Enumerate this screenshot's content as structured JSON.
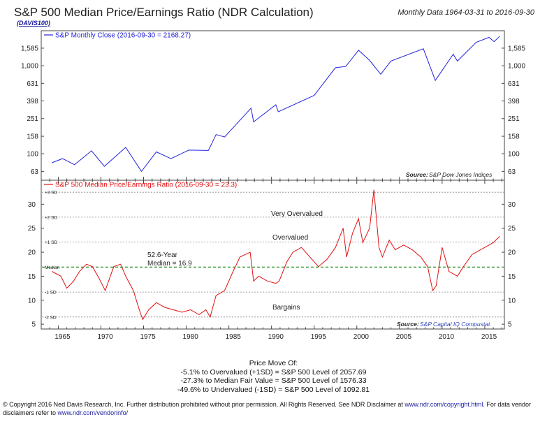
{
  "header": {
    "title": "S&P 500 Median Price/Earnings Ratio (NDR Calculation)",
    "code": "(DAVIS100)",
    "subtitle": "Monthly Data 1964-03-31 to 2016-09-30"
  },
  "colors": {
    "price": "#2222dd",
    "pe": "#e01010",
    "median": "#1a8a1a",
    "grid": "#888888",
    "source_blue": "#3344bb"
  },
  "chart_data": [
    {
      "type": "line",
      "title": "",
      "legend": "S&P Monthly Close (2016-09-30 = 2168.27)",
      "legend_position": "top-left",
      "yscale": "log",
      "yticks": [
        63,
        100,
        158,
        251,
        398,
        631,
        1000,
        1585
      ],
      "ytick_labels": [
        "63",
        "100",
        "158",
        "251",
        "398",
        "631",
        "1,000",
        "1,585"
      ],
      "ylim": [
        50,
        2500
      ],
      "source_label": "Source:",
      "source": "S&P Dow Jones Indices",
      "series": [
        {
          "name": "S&P Monthly Close (2016-09-30 = 2168.27)",
          "x": [
            1964.25,
            1965.5,
            1966.9,
            1968.9,
            1970.4,
            1972.9,
            1974.75,
            1976.5,
            1978.2,
            1980.3,
            1982.6,
            1983.5,
            1984.5,
            1987.6,
            1987.9,
            1990.5,
            1990.8,
            1995.0,
            1997.5,
            1998.7,
            2000.2,
            2001.5,
            2002.8,
            2004.0,
            2007.8,
            2009.2,
            2011.3,
            2011.8,
            2014.0,
            2015.5,
            2016.1,
            2016.75
          ],
          "y": [
            79,
            88,
            75,
            108,
            72,
            118,
            63,
            105,
            88,
            110,
            109,
            165,
            155,
            330,
            230,
            360,
            300,
            460,
            950,
            980,
            1500,
            1150,
            800,
            1130,
            1560,
            680,
            1350,
            1130,
            1850,
            2100,
            1880,
            2168
          ]
        }
      ]
    },
    {
      "type": "line",
      "title": "",
      "legend": "S&P 500 Median Price/Earnings Ratio (2016-09-30 = 23.3)",
      "legend_position": "top-left",
      "ylim": [
        5,
        35
      ],
      "yticks": [
        5,
        10,
        15,
        20,
        25,
        30
      ],
      "xticks": [
        1965,
        1970,
        1975,
        1980,
        1985,
        1990,
        1995,
        2000,
        2005,
        2010,
        2015
      ],
      "source_label": "Source:",
      "source": "S&P Capital IQ Compustat",
      "sd_lines": [
        {
          "label": "+3 SD",
          "value": 32.5
        },
        {
          "label": "+2 SD",
          "value": 27.3
        },
        {
          "label": "+1 SD",
          "value": 22.1
        },
        {
          "label": "Median",
          "value": 16.9
        },
        {
          "label": "-1 SD",
          "value": 11.7
        },
        {
          "label": "-2 SD",
          "value": 6.5
        }
      ],
      "annotations": {
        "very_overvalued": "Very Overvalued",
        "overvalued": "Overvalued",
        "bargains": "Bargains",
        "median_line1": "52.6-Year",
        "median_line2": "Median = 16.9"
      },
      "series": [
        {
          "name": "S&P 500 Median Price/Earnings Ratio (2016-09-30 = 23.3)",
          "x": [
            1964.25,
            1965.3,
            1966.0,
            1966.8,
            1967.5,
            1968.3,
            1969.0,
            1969.8,
            1970.5,
            1971.5,
            1972.3,
            1972.9,
            1973.8,
            1974.5,
            1974.9,
            1975.6,
            1976.5,
            1977.5,
            1978.5,
            1979.5,
            1980.5,
            1981.5,
            1982.3,
            1982.8,
            1983.5,
            1984.5,
            1985.5,
            1986.3,
            1987.5,
            1987.9,
            1988.5,
            1989.5,
            1990.5,
            1990.9,
            1991.8,
            1992.5,
            1993.5,
            1994.5,
            1995.5,
            1996.5,
            1997.5,
            1998.4,
            1998.8,
            1999.5,
            2000.2,
            2000.7,
            2001.5,
            2002.0,
            2002.6,
            2003.0,
            2003.8,
            2004.5,
            2005.5,
            2006.5,
            2007.5,
            2008.3,
            2008.9,
            2009.3,
            2010.0,
            2010.8,
            2011.8,
            2012.5,
            2013.5,
            2014.5,
            2015.5,
            2016.0,
            2016.75
          ],
          "y": [
            16,
            15,
            12.5,
            14,
            16,
            17.5,
            17,
            14.5,
            12,
            17,
            17.5,
            15,
            12,
            8,
            6,
            8,
            9.5,
            8.5,
            8,
            7.5,
            8,
            7,
            8,
            6.5,
            11,
            12,
            16,
            19,
            20,
            14,
            15,
            14,
            13.5,
            14,
            18,
            20,
            21,
            19,
            17,
            18.5,
            21,
            25,
            19,
            24,
            27,
            22,
            25,
            33,
            21,
            19,
            22.5,
            20.5,
            21.5,
            20.5,
            19,
            17,
            12,
            13,
            21,
            16,
            15,
            17,
            19.5,
            20.5,
            21.5,
            22,
            23.3
          ]
        }
      ]
    }
  ],
  "price_move": {
    "heading": "Price Move Of:",
    "lines": [
      "-5.1% to Overvalued (+1SD) = S&P 500 Level of 2057.69",
      "-27.3% to Median Fair Value = S&P 500 Level of 1576.33",
      "-49.6% to Undervalued (-1SD) = S&P 500 Level of 1092.81"
    ]
  },
  "copyright": {
    "text1": "© Copyright 2016 Ned Davis Research, Inc. Further distribution prohibited without prior permission. All Rights Reserved. See NDR Disclaimer at ",
    "link1": "www.ndr.com/copyright.html",
    "text2": ". For data vendor disclaimers refer to ",
    "link2": "www.ndr.com/vendorinfo/"
  }
}
